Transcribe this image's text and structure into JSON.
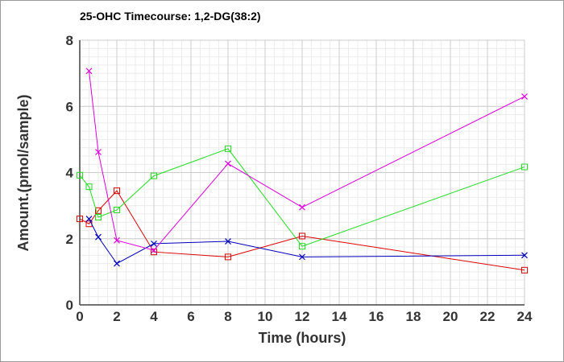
{
  "chart_data": {
    "type": "line",
    "title": "25-OHC Timecourse: 1,2-DG(38:2)",
    "xlabel": "Time (hours)",
    "ylabel": "Amount.(pmol/sample)",
    "xlim": [
      0,
      24
    ],
    "ylim": [
      0,
      8
    ],
    "xticks": [
      0,
      2,
      4,
      6,
      8,
      10,
      12,
      14,
      16,
      18,
      20,
      22,
      24
    ],
    "yticks": [
      0,
      2,
      4,
      6,
      8
    ],
    "grid": true,
    "legend": "none",
    "series": [
      {
        "color": "#dd0000",
        "marker": "square",
        "points": [
          [
            0,
            2.6
          ],
          [
            0.5,
            2.45
          ],
          [
            1,
            2.85
          ],
          [
            2,
            3.45
          ],
          [
            4,
            1.6
          ],
          [
            8,
            1.45
          ],
          [
            12,
            2.08
          ],
          [
            24,
            1.05
          ]
        ]
      },
      {
        "color": "#22dd22",
        "marker": "square",
        "points": [
          [
            0,
            3.92
          ],
          [
            0.5,
            3.57
          ],
          [
            1,
            2.65
          ],
          [
            2,
            2.87
          ],
          [
            4,
            3.9
          ],
          [
            8,
            4.72
          ],
          [
            12,
            1.77
          ],
          [
            24,
            4.17
          ]
        ]
      },
      {
        "color": "#0000bb",
        "marker": "x",
        "points": [
          [
            0.5,
            2.6
          ],
          [
            1,
            2.05
          ],
          [
            2,
            1.25
          ],
          [
            4,
            1.85
          ],
          [
            8,
            1.92
          ],
          [
            12,
            1.45
          ],
          [
            24,
            1.5
          ]
        ]
      },
      {
        "color": "#dd00dd",
        "marker": "x",
        "points": [
          [
            0.5,
            7.07
          ],
          [
            1,
            4.62
          ],
          [
            2,
            1.95
          ],
          [
            4,
            1.65
          ],
          [
            8,
            4.27
          ],
          [
            12,
            2.95
          ],
          [
            24,
            6.3
          ]
        ]
      }
    ]
  }
}
